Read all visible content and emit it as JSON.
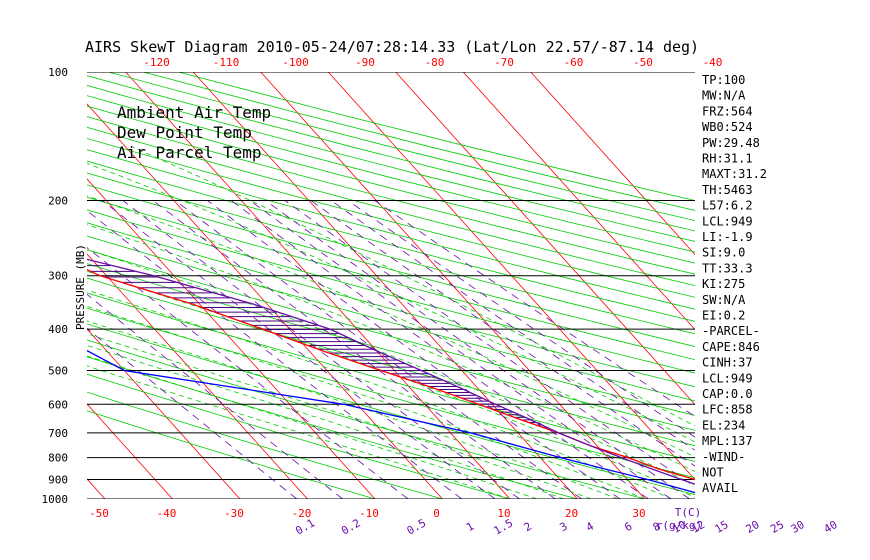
{
  "title": "AIRS SkewT Diagram 2010-05-24/07:28:14.33 (Lat/Lon 22.57/-87.14 deg)",
  "colors": {
    "ambient": "#ff0000",
    "dewpoint": "#0000ff",
    "parcel": "#6a0dad",
    "isotherm": "#ff0000",
    "dry_adiabat": "#00cc00",
    "moist_adiabat": "#00cc00",
    "mixing_ratio": "#6a0dad",
    "isobar": "#000000"
  },
  "legend": [
    "Ambient Air Temp",
    "Dew Point Temp",
    "Air Parcel Temp"
  ],
  "ylabel": "PRESSURE (MB)",
  "xlabel_unit": "T(C)",
  "mixing_ratio_unit": "r(g/kg)",
  "indices": [
    "TP:100",
    "MW:N/A",
    "FRZ:564",
    "WB0:524",
    "PW:29.48",
    "RH:31.1",
    "MAXT:31.2",
    "TH:5463",
    "L57:6.2",
    "LCL:949",
    "LI:-1.9",
    "SI:9.0",
    "TT:33.3",
    "KI:275",
    "SW:N/A",
    "EI:0.2",
    "-PARCEL-",
    "CAPE:846",
    "CINH:37",
    "LCL:949",
    "CAP:0.0",
    "LFC:858",
    "EL:234",
    "MPL:137",
    "-WIND-",
    "NOT",
    "AVAIL"
  ],
  "chart_data": {
    "type": "line",
    "title": "AIRS SkewT Diagram 2010-05-24/07:28:14.33 (Lat/Lon 22.57/-87.14 deg)",
    "ylabel": "PRESSURE (MB)",
    "xlabel": "T(C)",
    "y_scale": "log",
    "y_reversed": true,
    "ylim": [
      1000,
      100
    ],
    "pressure_ticks": [
      100,
      200,
      300,
      400,
      500,
      600,
      700,
      800,
      900,
      1000
    ],
    "top_temp_ticks": [
      -120,
      -110,
      -100,
      -90,
      -80,
      -70,
      -60,
      -50,
      -40
    ],
    "bottom_temp_ticks": [
      -50,
      -40,
      -30,
      -20,
      -10,
      0,
      10,
      20,
      30
    ],
    "mixing_ratio_ticks": [
      "0.1",
      "0.2",
      "0.5",
      "1",
      "1.5",
      "2",
      "3",
      "4",
      "6",
      "8",
      "10",
      "12",
      "15",
      "20",
      "25",
      "30",
      "40"
    ],
    "series": [
      {
        "name": "Ambient Air Temp",
        "points": [
          [
            100,
            -77
          ],
          [
            130,
            -75
          ],
          [
            150,
            -76
          ],
          [
            200,
            -58
          ],
          [
            250,
            -47
          ],
          [
            300,
            -41
          ],
          [
            350,
            -31
          ],
          [
            400,
            -24
          ],
          [
            450,
            -18
          ],
          [
            500,
            -12
          ],
          [
            550,
            -6.5
          ],
          [
            600,
            -2
          ],
          [
            650,
            2
          ],
          [
            700,
            6
          ],
          [
            750,
            9
          ],
          [
            800,
            13
          ],
          [
            850,
            16
          ],
          [
            900,
            20
          ],
          [
            950,
            22
          ],
          [
            1000,
            27
          ]
        ]
      },
      {
        "name": "Dew Point Temp",
        "points": [
          [
            100,
            -92
          ],
          [
            150,
            -93
          ],
          [
            200,
            -90
          ],
          [
            250,
            -82
          ],
          [
            300,
            -71
          ],
          [
            350,
            -62
          ],
          [
            400,
            -56
          ],
          [
            500,
            -50
          ],
          [
            600,
            -22
          ],
          [
            700,
            -7
          ],
          [
            800,
            3
          ],
          [
            850,
            8
          ],
          [
            900,
            13
          ],
          [
            950,
            17
          ],
          [
            1000,
            21
          ]
        ]
      },
      {
        "name": "Air Parcel Temp",
        "points": [
          [
            100,
            -97
          ],
          [
            150,
            -88
          ],
          [
            200,
            -66
          ],
          [
            250,
            -49
          ],
          [
            300,
            -33
          ],
          [
            350,
            -22
          ],
          [
            400,
            -14
          ],
          [
            450,
            -10
          ],
          [
            500,
            -6
          ],
          [
            550,
            -2.5
          ],
          [
            600,
            0.5
          ],
          [
            650,
            3.5
          ],
          [
            700,
            6
          ],
          [
            750,
            9
          ],
          [
            800,
            12
          ],
          [
            850,
            15
          ],
          [
            900,
            18
          ],
          [
            950,
            21
          ],
          [
            1000,
            24.5
          ]
        ]
      }
    ],
    "mixing_ratio_lines": [
      0.1,
      0.2,
      0.5,
      1,
      1.5,
      2,
      3,
      4,
      6,
      8,
      10,
      12,
      15,
      20,
      25,
      30,
      40
    ],
    "grid": true
  }
}
